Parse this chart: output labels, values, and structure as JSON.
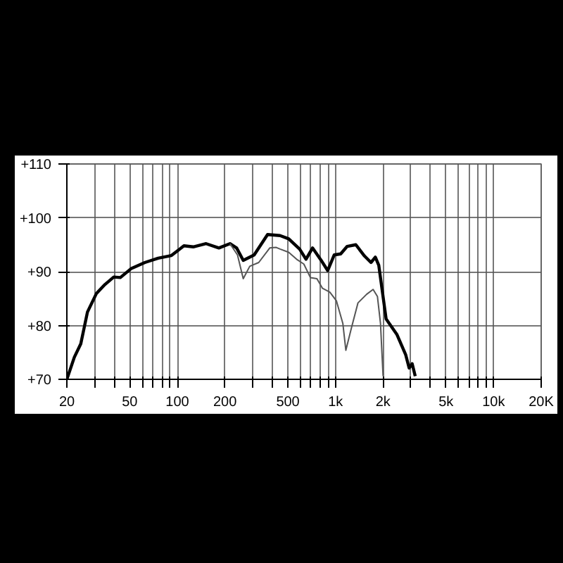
{
  "chart_data": {
    "type": "line",
    "log": "x",
    "grid": true,
    "xlim": [
      20,
      20000
    ],
    "ylim": [
      70,
      110
    ],
    "xticks": [
      20,
      {
        "value": 30,
        "label": null
      },
      {
        "value": 40,
        "label": null
      },
      50,
      {
        "value": 60,
        "label": null
      },
      {
        "value": 70,
        "label": null
      },
      {
        "value": 80,
        "label": null
      },
      {
        "value": 90,
        "label": null
      },
      100,
      200,
      {
        "value": 300,
        "label": null
      },
      {
        "value": 400,
        "label": null
      },
      500,
      {
        "value": 600,
        "label": null
      },
      {
        "value": 700,
        "label": null
      },
      {
        "value": 800,
        "label": null
      },
      {
        "value": 900,
        "label": null
      },
      {
        "value": 1000,
        "label": "1k"
      },
      {
        "value": 2000,
        "label": "2k"
      },
      {
        "value": 3000,
        "label": null
      },
      {
        "value": 4000,
        "label": null
      },
      {
        "value": 5000,
        "label": "5k"
      },
      {
        "value": 6000,
        "label": null
      },
      {
        "value": 7000,
        "label": null
      },
      {
        "value": 8000,
        "label": null
      },
      {
        "value": 9000,
        "label": null
      },
      {
        "value": 10000,
        "label": "10k"
      },
      {
        "value": 20000,
        "label": "20K"
      }
    ],
    "yticks": [
      {
        "value": 70,
        "label": "+70"
      },
      {
        "value": 80,
        "label": "+80"
      },
      {
        "value": 90,
        "label": "+90"
      },
      {
        "value": 100,
        "label": "+100"
      },
      {
        "value": 110,
        "label": "+110"
      }
    ],
    "series": [
      {
        "color": "#000000",
        "x": [
          20,
          22.3,
          24.5,
          27,
          30.7,
          34.8,
          39.6,
          43.6,
          51.2,
          62.3,
          75.6,
          91.7,
          110,
          126,
          152,
          183,
          215,
          237,
          261,
          306,
          372,
          446,
          506,
          593,
          651,
          716,
          812,
          893,
          981,
          1079,
          1186,
          1345,
          1526,
          1677,
          1787,
          1878,
          2091,
          2450,
          2778,
          2924,
          3055,
          3195
        ],
        "values": [
          70,
          74.1,
          76.6,
          82.5,
          85.9,
          87.6,
          89.0,
          88.9,
          90.6,
          91.7,
          92.5,
          93.0,
          94.8,
          94.6,
          95.2,
          94.4,
          95.2,
          94.4,
          92.1,
          93.1,
          96.9,
          96.7,
          96.1,
          94.2,
          92.3,
          94.4,
          92.1,
          90.2,
          93.1,
          93.3,
          94.7,
          95.0,
          92.9,
          91.7,
          92.7,
          91.2,
          81.2,
          78.3,
          74.6,
          72.1,
          72.9,
          70.6
        ]
      },
      {
        "color": "#555555",
        "x": [
          215,
          240,
          261,
          287,
          327,
          384,
          422,
          446,
          506,
          574,
          631,
          694,
          763,
          828,
          921,
          1013,
          1113,
          1163,
          1263,
          1388,
          1575,
          1730,
          1842,
          1926,
          2000
        ],
        "values": [
          95.2,
          93.1,
          88.7,
          91.0,
          91.7,
          94.4,
          94.5,
          94.2,
          93.6,
          92.2,
          91.4,
          88.9,
          88.7,
          86.9,
          86.2,
          84.6,
          80.4,
          75.4,
          79.6,
          84.2,
          85.8,
          86.7,
          85.4,
          80.4,
          70.6
        ]
      }
    ]
  }
}
